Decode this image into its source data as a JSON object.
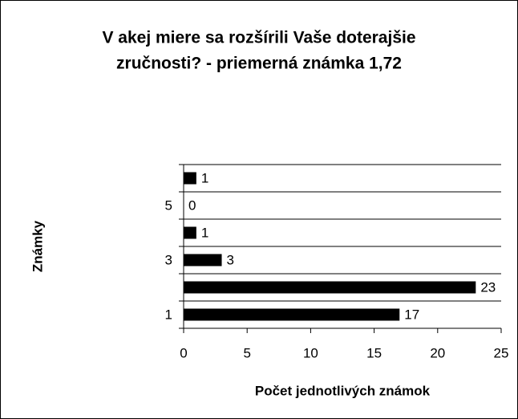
{
  "chart_data": {
    "type": "barh",
    "title": [
      "V akej miere sa rozšírili Vaše doterajšie",
      "zručnosti? - priemerná známka 1,72"
    ],
    "x_label": "Počet jednotlivých známok",
    "y_label": "Známky",
    "categories": [
      "1",
      null,
      "3",
      null,
      "5",
      null
    ],
    "values": [
      17,
      23,
      3,
      1,
      0,
      1
    ],
    "color": "#000000",
    "xlim": [
      0,
      25
    ],
    "xticks": [
      0,
      5,
      10,
      15,
      20,
      25
    ],
    "grid": true
  }
}
